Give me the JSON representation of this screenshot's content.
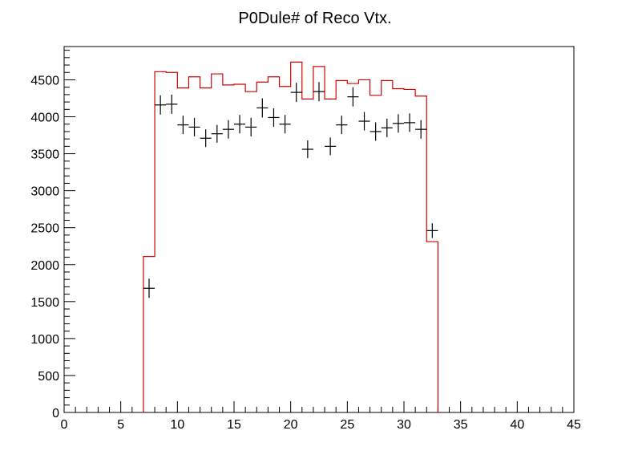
{
  "chart_data": {
    "type": "bar",
    "title": "P0Dule# of Reco Vtx.",
    "xlabel": "",
    "ylabel": "",
    "xlim": [
      0,
      45
    ],
    "ylim": [
      0,
      4950
    ],
    "grid": false,
    "x_ticks": [
      0,
      5,
      10,
      15,
      20,
      25,
      30,
      35,
      40,
      45
    ],
    "y_ticks": [
      0,
      500,
      1000,
      1500,
      2000,
      2500,
      3000,
      3500,
      4000,
      4500
    ],
    "bin_edges": [
      7,
      8,
      9,
      10,
      11,
      12,
      13,
      14,
      15,
      16,
      17,
      18,
      19,
      20,
      21,
      22,
      23,
      24,
      25,
      26,
      27,
      28,
      29,
      30,
      31,
      32,
      33
    ],
    "series": [
      {
        "style": "step-histogram",
        "color": "#d40000",
        "values": [
          2110,
          4610,
          4600,
          4390,
          4540,
          4390,
          4580,
          4430,
          4440,
          4340,
          4470,
          4540,
          4410,
          4740,
          4240,
          4680,
          4240,
          4490,
          4450,
          4500,
          4290,
          4490,
          4380,
          4370,
          4280,
          2310
        ]
      },
      {
        "style": "points-with-errors",
        "color": "#000000",
        "x": [
          7.5,
          8.5,
          9.5,
          10.5,
          11.5,
          12.5,
          13.5,
          14.5,
          15.5,
          16.5,
          17.5,
          18.5,
          19.5,
          20.5,
          21.5,
          22.5,
          23.5,
          24.5,
          25.5,
          26.5,
          27.5,
          28.5,
          29.5,
          30.5,
          31.5,
          32.5
        ],
        "values": [
          1680,
          4160,
          4170,
          3890,
          3860,
          3710,
          3770,
          3830,
          3900,
          3860,
          4120,
          3990,
          3900,
          4330,
          3560,
          4340,
          3600,
          3890,
          4270,
          3940,
          3800,
          3850,
          3910,
          3920,
          3830,
          2460
        ],
        "y_err": [
          130,
          130,
          130,
          125,
          125,
          120,
          120,
          125,
          125,
          125,
          130,
          125,
          125,
          130,
          120,
          130,
          120,
          125,
          130,
          125,
          125,
          125,
          125,
          125,
          125,
          100
        ]
      }
    ]
  }
}
